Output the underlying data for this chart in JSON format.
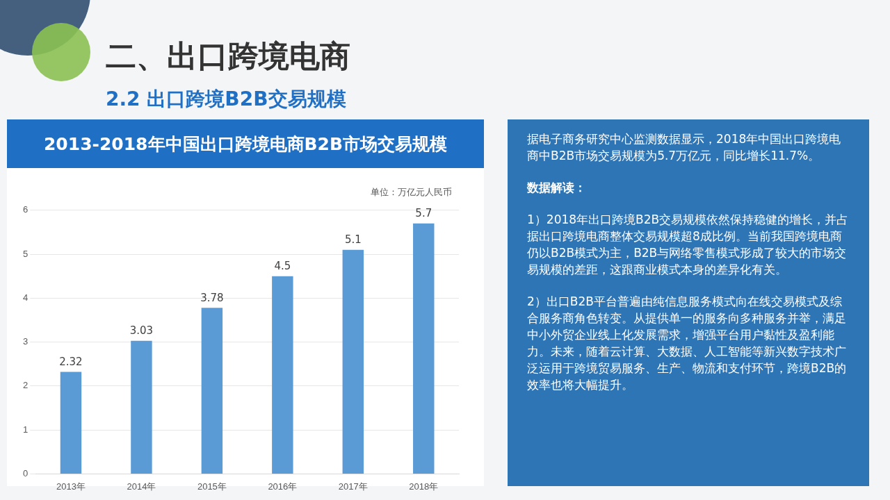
{
  "chart_data": {
    "type": "bar",
    "title": "2013-2018年中国出口跨境电商B2B市场交易规模",
    "ylabel": "单位：万亿元人民币",
    "categories": [
      "2013年",
      "2014年",
      "2015年",
      "2016年",
      "2017年",
      "2018年"
    ],
    "values": [
      2.32,
      3.03,
      3.78,
      4.5,
      5.1,
      5.7
    ],
    "color": "#5b9bd5",
    "ylim": [
      0,
      6
    ],
    "yticks": [
      0,
      1,
      2,
      3,
      4,
      5,
      6
    ],
    "grid": "y",
    "data_labels": true,
    "annotations": [
      "二、出口跨境电商",
      "2.2 出口跨境B2B交易规模",
      "据电子商务研究中心监测数据显示，2018年中国出口跨境电商中B2B市场交易规模为5.7万亿元，同比增长11.7%。",
      "数据解读：",
      "1）2018年出口跨境B2B交易规模依然保持稳健的增长，并占据出口跨境电商整体交易规模超8成比例。当前我国跨境电商仍以B2B模式为主，B2B与网络零售模式形成了较大的市场交易规模的差距，这跟商业模式本身的差异化有关。",
      "2）出口B2B平台普遍由纯信息服务模式向在线交易模式及综合服务商角色转变。从提供单一的服务向多种服务并举，满足中小外贸企业线上化发展需求，增强平台用户黏性及盈利能力。未来，随着云计算、大数据、人工智能等新兴数字技术广泛运用于跨境贸易服务、生产、物流和支付环节，跨境B2B的效率也将大幅提升。"
    ]
  }
}
